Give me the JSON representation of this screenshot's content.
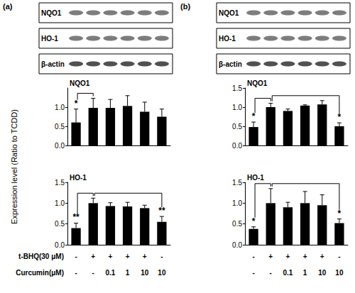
{
  "figure": {
    "ylabel": "Expression level (Ratio to TCDD)",
    "condition_labels": [
      "t-BHQ(30 μM)",
      "Curcumin(μM)"
    ],
    "panels": [
      {
        "label": "(a)",
        "blots": [
          "NQO1",
          "HO-1",
          "β-actin"
        ],
        "conditions": [
          [
            "-",
            "+",
            "+",
            "+",
            "+",
            "-"
          ],
          [
            "-",
            "-",
            "0.1",
            "1",
            "10",
            "10"
          ]
        ]
      },
      {
        "label": "(b)",
        "blots": [
          "NQO1",
          "HO-1",
          "β-actin"
        ],
        "conditions": [
          [
            "-",
            "+",
            "+",
            "+",
            "+",
            "-"
          ],
          [
            "-",
            "-",
            "0.1",
            "1",
            "10",
            "10"
          ]
        ]
      }
    ]
  },
  "chart_data": [
    {
      "type": "bar",
      "title": "NQO1",
      "categories": [
        null,
        null,
        null,
        null,
        null,
        null
      ],
      "values": [
        0.6,
        0.98,
        0.98,
        1.03,
        0.88,
        0.75
      ],
      "errors": [
        0.35,
        0.25,
        0.22,
        0.27,
        0.25,
        0.2
      ],
      "color": "#000000",
      "ylim": [
        0,
        1.5
      ],
      "yticks": [
        {
          "value": 0,
          "label": "0.0"
        },
        {
          "value": 0.5,
          "label": "0.5"
        },
        {
          "value": 1,
          "label": "1.0"
        }
      ],
      "grid": false,
      "tick_labels": "y",
      "annotations": [
        {
          "index": 0,
          "text": "*"
        }
      ],
      "comparisons": [
        [
          0,
          1
        ]
      ]
    },
    {
      "type": "bar",
      "title": "HO-1",
      "categories": [
        null,
        null,
        null,
        null,
        null,
        null
      ],
      "values": [
        0.4,
        1.0,
        0.93,
        0.92,
        0.88,
        0.55
      ],
      "errors": [
        0.12,
        0.12,
        0.08,
        0.1,
        0.07,
        0.13
      ],
      "color": "#000000",
      "ylim": [
        0,
        1.5
      ],
      "yticks": [
        {
          "value": 0,
          "label": "0.0"
        },
        {
          "value": 0.5,
          "label": "0.5"
        },
        {
          "value": 1,
          "label": "1.0"
        },
        {
          "value": 1.5,
          "label": "1.5"
        }
      ],
      "grid": false,
      "tick_labels": "y",
      "annotations": [
        {
          "index": 0,
          "text": "**"
        },
        {
          "index": 5,
          "text": "**"
        }
      ],
      "comparisons": [
        [
          0,
          1
        ],
        [
          1,
          5
        ]
      ]
    },
    {
      "type": "bar",
      "title": "NQO1",
      "categories": [
        null,
        null,
        null,
        null,
        null,
        null
      ],
      "values": [
        0.48,
        1.0,
        0.9,
        1.04,
        1.07,
        0.5
      ],
      "errors": [
        0.13,
        0.1,
        0.05,
        0.02,
        0.1,
        0.09
      ],
      "color": "#000000",
      "ylim": [
        0,
        1.5
      ],
      "yticks": [
        {
          "value": 0,
          "label": "0.0"
        },
        {
          "value": 0.5,
          "label": "0.5"
        },
        {
          "value": 1,
          "label": "1.0"
        },
        {
          "value": 1.5,
          "label": "1.5"
        }
      ],
      "grid": false,
      "tick_labels": "y",
      "annotations": [
        {
          "index": 0,
          "text": "*"
        },
        {
          "index": 5,
          "text": "*"
        }
      ],
      "comparisons": [
        [
          0,
          1
        ],
        [
          1,
          5
        ]
      ]
    },
    {
      "type": "bar",
      "title": "HO-1",
      "categories": [
        null,
        null,
        null,
        null,
        null,
        null
      ],
      "values": [
        0.38,
        1.0,
        0.9,
        1.0,
        0.95,
        0.52
      ],
      "errors": [
        0.05,
        0.35,
        0.12,
        0.28,
        0.25,
        0.1
      ],
      "color": "#000000",
      "ylim": [
        0,
        1.5
      ],
      "yticks": [
        {
          "value": 0,
          "label": "0.0"
        },
        {
          "value": 0.5,
          "label": "0.5"
        },
        {
          "value": 1,
          "label": "1.0"
        },
        {
          "value": 1.5,
          "label": "1.5"
        }
      ],
      "grid": false,
      "tick_labels": "y",
      "annotations": [
        {
          "index": 0,
          "text": "*"
        },
        {
          "index": 5,
          "text": "*"
        }
      ],
      "comparisons": [
        [
          0,
          1
        ],
        [
          1,
          5
        ]
      ]
    }
  ]
}
